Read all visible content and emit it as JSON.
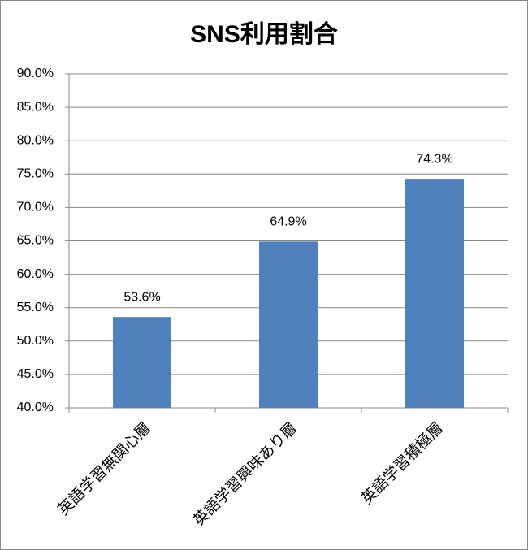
{
  "chart_data": {
    "type": "bar",
    "title": "SNS利用割合",
    "categories": [
      "英語学習無関心層",
      "英語学習興味あり層",
      "英語学習積極層"
    ],
    "values": [
      53.6,
      64.9,
      74.3
    ],
    "value_labels": [
      "53.6%",
      "64.9%",
      "74.3%"
    ],
    "color": "#4f81bd",
    "ylim": [
      40,
      90
    ],
    "yticks": [
      {
        "value": 40,
        "label": "40.0%"
      },
      {
        "value": 45,
        "label": "45.0%"
      },
      {
        "value": 50,
        "label": "50.0%"
      },
      {
        "value": 55,
        "label": "55.0%"
      },
      {
        "value": 60,
        "label": "60.0%"
      },
      {
        "value": 65,
        "label": "65.0%"
      },
      {
        "value": 70,
        "label": "70.0%"
      },
      {
        "value": 75,
        "label": "75.0%"
      },
      {
        "value": 80,
        "label": "80.0%"
      },
      {
        "value": 85,
        "label": "85.0%"
      },
      {
        "value": 90,
        "label": "90.0%"
      }
    ],
    "grid": true
  }
}
